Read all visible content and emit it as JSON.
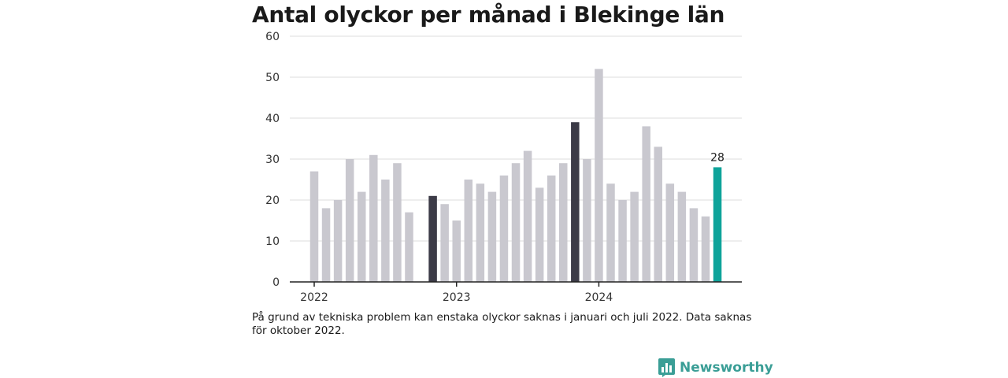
{
  "chart_data": {
    "type": "bar",
    "title": "Antal olyckor per månad i Blekinge län",
    "ylim": [
      0,
      60
    ],
    "yticks": [
      "0",
      "10",
      "20",
      "30",
      "40",
      "50",
      "60"
    ],
    "x_tick_labels": [
      {
        "label": "2022",
        "month_index": 0
      },
      {
        "label": "2023",
        "month_index": 12
      },
      {
        "label": "2024",
        "month_index": 24
      }
    ],
    "start": "2022-01",
    "values": [
      27,
      18,
      20,
      30,
      22,
      31,
      25,
      29,
      17,
      null,
      21,
      19,
      15,
      25,
      24,
      22,
      26,
      29,
      32,
      23,
      26,
      29,
      39,
      30,
      52,
      24,
      20,
      22,
      38,
      33,
      24,
      22,
      18,
      16,
      28
    ],
    "highlight_dark_indices": [
      10,
      22
    ],
    "highlight_accent_index": 34,
    "data_labels": [
      {
        "index": 34,
        "text": "28"
      }
    ],
    "grid": true,
    "colors": {
      "bar": "#c9c8cf",
      "dark": "#3c3b47",
      "accent": "#0ea39a",
      "grid": "#dddddd",
      "axis": "#222222"
    }
  },
  "footnote": "På grund av tekniska problem kan enstaka olyckor saknas i januari och juli 2022. Data saknas för oktober 2022.",
  "brand": {
    "name": "Newsworthy",
    "icon": "bar-chart-badge-icon",
    "color": "#3a9e96"
  }
}
